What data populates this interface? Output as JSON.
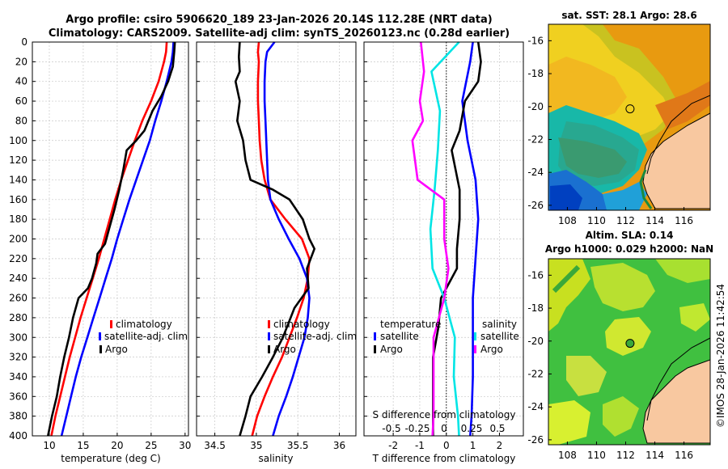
{
  "titles": {
    "line1": "Argo profile: csiro 5906620_189 23-Jan-2026 20.14S 112.28E (NRT data)",
    "line2": "Climatology: CARS2009. Satellite-adj clim: synTS_20260123.nc (0.28d earlier)"
  },
  "colors": {
    "climatology": "#ff0000",
    "satellite": "#0000ff",
    "argo": "#000000",
    "sat_salinity": "#00e5e5",
    "argo_salinity": "#ff00ff"
  },
  "chart_data": [
    {
      "type": "line",
      "id": "temperature",
      "xlabel": "temperature (deg C)",
      "ylim": [
        0,
        400
      ],
      "xlim": [
        7.5,
        30.5
      ],
      "y_reversed": true,
      "yticks": [
        0,
        20,
        40,
        60,
        80,
        100,
        120,
        140,
        160,
        180,
        200,
        220,
        240,
        260,
        280,
        300,
        320,
        340,
        360,
        380,
        400
      ],
      "xticks": [
        10,
        15,
        20,
        25,
        30
      ],
      "legend": [
        "climatology",
        "satellite-adj. clim",
        "Argo"
      ],
      "series": [
        {
          "name": "climatology",
          "color": "#ff0000",
          "points": [
            [
              27.3,
              0
            ],
            [
              27.2,
              10
            ],
            [
              26.9,
              20
            ],
            [
              26.1,
              40
            ],
            [
              25.0,
              60
            ],
            [
              23.7,
              80
            ],
            [
              22.6,
              100
            ],
            [
              21.6,
              120
            ],
            [
              20.6,
              140
            ],
            [
              19.7,
              160
            ],
            [
              18.9,
              180
            ],
            [
              18.1,
              200
            ],
            [
              17.3,
              220
            ],
            [
              16.4,
              240
            ],
            [
              15.5,
              260
            ],
            [
              14.6,
              280
            ],
            [
              13.8,
              300
            ],
            [
              13.0,
              320
            ],
            [
              12.3,
              340
            ],
            [
              11.6,
              360
            ],
            [
              10.9,
              380
            ],
            [
              10.3,
              400
            ]
          ]
        },
        {
          "name": "satellite-adj. clim",
          "color": "#0000ff",
          "points": [
            [
              28.3,
              0
            ],
            [
              28.2,
              10
            ],
            [
              28.0,
              20
            ],
            [
              27.3,
              40
            ],
            [
              26.5,
              60
            ],
            [
              25.6,
              80
            ],
            [
              24.8,
              100
            ],
            [
              23.8,
              120
            ],
            [
              22.8,
              140
            ],
            [
              21.8,
              160
            ],
            [
              20.9,
              180
            ],
            [
              20.0,
              200
            ],
            [
              19.2,
              220
            ],
            [
              18.3,
              240
            ],
            [
              17.4,
              260
            ],
            [
              16.5,
              280
            ],
            [
              15.6,
              300
            ],
            [
              14.7,
              320
            ],
            [
              13.9,
              340
            ],
            [
              13.2,
              360
            ],
            [
              12.5,
              380
            ],
            [
              11.8,
              400
            ]
          ]
        },
        {
          "name": "Argo",
          "color": "#000000",
          "points": [
            [
              28.5,
              0
            ],
            [
              28.4,
              10
            ],
            [
              28.2,
              25
            ],
            [
              27.5,
              40
            ],
            [
              26.5,
              55
            ],
            [
              25.2,
              70
            ],
            [
              24.0,
              90
            ],
            [
              22.8,
              100
            ],
            [
              21.4,
              110
            ],
            [
              20.9,
              130
            ],
            [
              20.3,
              150
            ],
            [
              19.6,
              170
            ],
            [
              18.8,
              190
            ],
            [
              18.2,
              205
            ],
            [
              17.1,
              215
            ],
            [
              16.9,
              225
            ],
            [
              16.3,
              240
            ],
            [
              15.7,
              250
            ],
            [
              14.3,
              260
            ],
            [
              13.5,
              280
            ],
            [
              12.9,
              300
            ],
            [
              12.2,
              320
            ],
            [
              11.6,
              340
            ],
            [
              11.1,
              360
            ],
            [
              10.4,
              380
            ],
            [
              9.8,
              400
            ]
          ]
        }
      ]
    },
    {
      "type": "line",
      "id": "salinity",
      "xlabel": "salinity",
      "ylim": [
        0,
        400
      ],
      "xlim": [
        34.28,
        36.2
      ],
      "y_reversed": true,
      "xticks": [
        34.5,
        35,
        35.5,
        36
      ],
      "legend": [
        "climatology",
        "satellite-adj. clim",
        "Argo"
      ],
      "series": [
        {
          "name": "climatology",
          "color": "#ff0000",
          "points": [
            [
              35.03,
              0
            ],
            [
              35.02,
              10
            ],
            [
              35.03,
              20
            ],
            [
              35.02,
              40
            ],
            [
              35.02,
              60
            ],
            [
              35.03,
              80
            ],
            [
              35.04,
              100
            ],
            [
              35.06,
              120
            ],
            [
              35.1,
              140
            ],
            [
              35.17,
              160
            ],
            [
              35.35,
              180
            ],
            [
              35.55,
              200
            ],
            [
              35.64,
              220
            ],
            [
              35.62,
              240
            ],
            [
              35.57,
              260
            ],
            [
              35.49,
              280
            ],
            [
              35.4,
              300
            ],
            [
              35.31,
              320
            ],
            [
              35.2,
              340
            ],
            [
              35.1,
              360
            ],
            [
              35.01,
              380
            ],
            [
              34.95,
              400
            ]
          ]
        },
        {
          "name": "satellite-adj. clim",
          "color": "#0000ff",
          "points": [
            [
              35.22,
              0
            ],
            [
              35.13,
              10
            ],
            [
              35.11,
              20
            ],
            [
              35.1,
              40
            ],
            [
              35.1,
              60
            ],
            [
              35.11,
              80
            ],
            [
              35.12,
              100
            ],
            [
              35.13,
              120
            ],
            [
              35.14,
              140
            ],
            [
              35.17,
              160
            ],
            [
              35.27,
              180
            ],
            [
              35.39,
              200
            ],
            [
              35.52,
              220
            ],
            [
              35.61,
              240
            ],
            [
              35.64,
              260
            ],
            [
              35.62,
              280
            ],
            [
              35.58,
              300
            ],
            [
              35.51,
              320
            ],
            [
              35.44,
              340
            ],
            [
              35.36,
              360
            ],
            [
              35.27,
              380
            ],
            [
              35.2,
              400
            ]
          ]
        },
        {
          "name": "Argo",
          "color": "#000000",
          "points": [
            [
              34.8,
              0
            ],
            [
              34.79,
              15
            ],
            [
              34.8,
              30
            ],
            [
              34.75,
              40
            ],
            [
              34.8,
              60
            ],
            [
              34.77,
              80
            ],
            [
              34.84,
              100
            ],
            [
              34.87,
              120
            ],
            [
              34.93,
              140
            ],
            [
              35.2,
              150
            ],
            [
              35.4,
              160
            ],
            [
              35.56,
              180
            ],
            [
              35.64,
              200
            ],
            [
              35.7,
              210
            ],
            [
              35.61,
              230
            ],
            [
              35.63,
              250
            ],
            [
              35.46,
              270
            ],
            [
              35.32,
              300
            ],
            [
              35.2,
              320
            ],
            [
              35.07,
              340
            ],
            [
              34.93,
              360
            ],
            [
              34.87,
              380
            ],
            [
              34.8,
              400
            ]
          ]
        }
      ]
    },
    {
      "type": "line",
      "id": "differences",
      "xlabel": "T difference from climatology",
      "xlabel_top": "S difference from climatology",
      "ylim": [
        0,
        400
      ],
      "xlim": [
        -3.1,
        2.9
      ],
      "y_reversed": true,
      "xticks": [
        -2,
        -1,
        0,
        1,
        2
      ],
      "s_xticks": [
        "-0.5",
        "-0.25",
        "0",
        "0.25",
        "0.5"
      ],
      "zero_line": 0,
      "legend": {
        "temperature_header": "temperature",
        "salinity_header": "salinity",
        "satellite": "satellite",
        "argo": "Argo"
      },
      "series": [
        {
          "name": "T satellite",
          "color": "#0000ff",
          "points": [
            [
              1.0,
              0
            ],
            [
              0.9,
              20
            ],
            [
              0.6,
              60
            ],
            [
              0.8,
              100
            ],
            [
              1.1,
              140
            ],
            [
              1.2,
              180
            ],
            [
              1.1,
              220
            ],
            [
              1.0,
              260
            ],
            [
              1.0,
              300
            ],
            [
              1.0,
              340
            ],
            [
              0.95,
              380
            ],
            [
              0.9,
              400
            ]
          ]
        },
        {
          "name": "T Argo",
          "color": "#000000",
          "points": [
            [
              1.2,
              0
            ],
            [
              1.3,
              20
            ],
            [
              1.2,
              40
            ],
            [
              0.7,
              60
            ],
            [
              0.5,
              90
            ],
            [
              0.2,
              110
            ],
            [
              0.5,
              150
            ],
            [
              0.5,
              180
            ],
            [
              0.4,
              210
            ],
            [
              0.4,
              230
            ],
            [
              -0.2,
              260
            ],
            [
              -0.3,
              290
            ],
            [
              -0.5,
              320
            ],
            [
              -0.5,
              360
            ],
            [
              -0.5,
              400
            ]
          ]
        },
        {
          "name": "S satellite",
          "color": "#00e5e5",
          "points": [
            [
              0.12,
              0
            ],
            [
              -0.14,
              30
            ],
            [
              -0.06,
              70
            ],
            [
              -0.08,
              110
            ],
            [
              -0.11,
              150
            ],
            [
              -0.15,
              190
            ],
            [
              -0.13,
              230
            ],
            [
              -0.02,
              260
            ],
            [
              0.08,
              300
            ],
            [
              0.07,
              340
            ],
            [
              0.11,
              380
            ],
            [
              0.12,
              400
            ]
          ]
        },
        {
          "name": "S Argo",
          "color": "#ff00ff",
          "points": [
            [
              -0.24,
              0
            ],
            [
              -0.21,
              30
            ],
            [
              -0.25,
              60
            ],
            [
              -0.22,
              80
            ],
            [
              -0.32,
              100
            ],
            [
              -0.27,
              140
            ],
            [
              -0.02,
              160
            ],
            [
              -0.02,
              200
            ],
            [
              0.02,
              230
            ],
            [
              -0.02,
              260
            ],
            [
              -0.12,
              300
            ],
            [
              -0.12,
              340
            ],
            [
              -0.12,
              380
            ],
            [
              -0.13,
              400
            ]
          ]
        }
      ]
    }
  ],
  "maps": {
    "sst": {
      "title": "sat. SST: 28.1  Argo: 28.6",
      "argo_lon": 112.3,
      "argo_lat": -20.14
    },
    "sla": {
      "title_line1": "Altim. SLA: 0.14",
      "title_line2": "Argo h1000: 0.029 h2000: NaN",
      "argo_lon": 112.3,
      "argo_lat": -20.14
    },
    "xticks": [
      108,
      110,
      112,
      114,
      116
    ],
    "yticks": [
      -16,
      -18,
      -20,
      -22,
      -24,
      -26
    ]
  },
  "footer": {
    "stamp": "©IMOS 28-Jan-2026 11:42:54"
  }
}
